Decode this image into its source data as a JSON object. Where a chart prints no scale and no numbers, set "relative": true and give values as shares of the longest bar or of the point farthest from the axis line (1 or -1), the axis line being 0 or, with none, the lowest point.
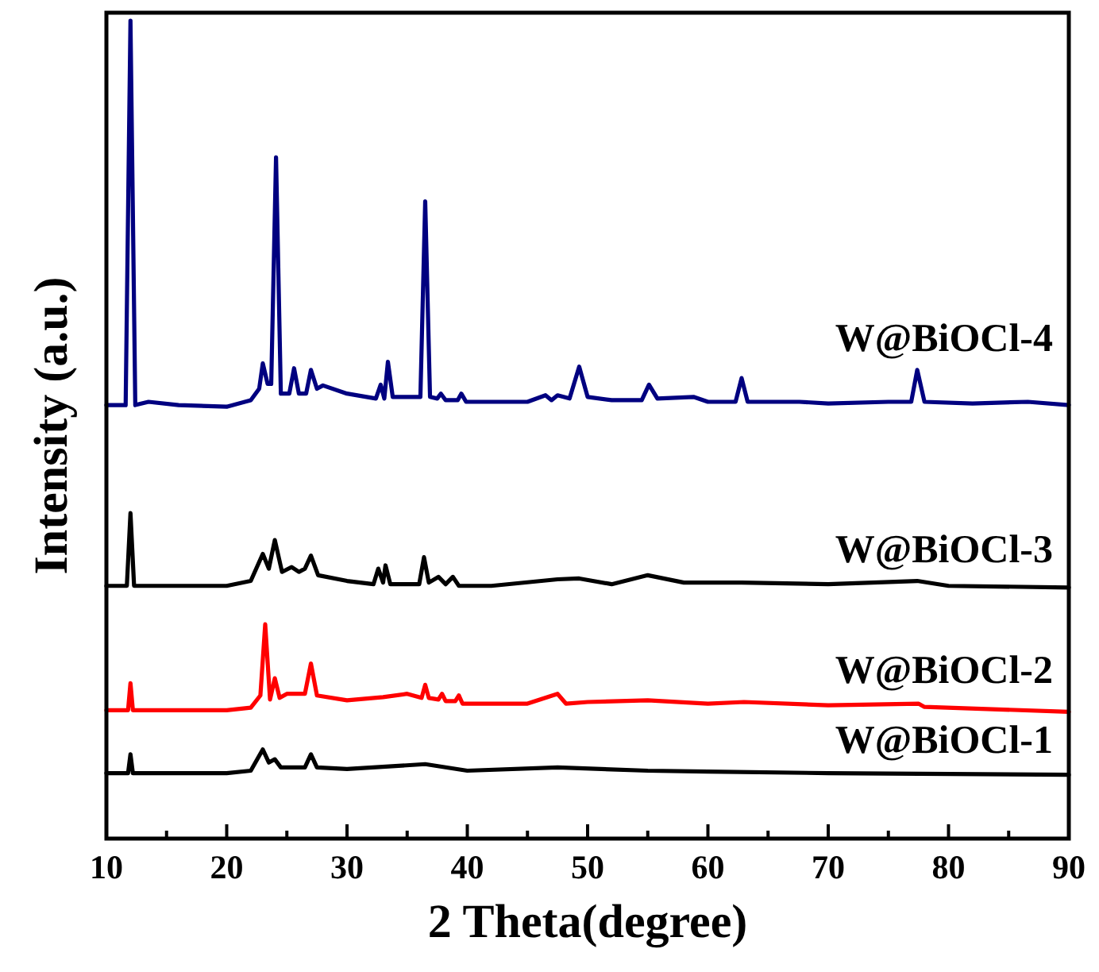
{
  "chart_data": {
    "type": "line",
    "relative": true,
    "xlabel": "2 Theta(degree)",
    "ylabel": "Intensity (a.u.)",
    "xlim": [
      10,
      90
    ],
    "xticks": [
      10,
      {
        "value": 15,
        "label": null
      },
      20,
      {
        "value": 25,
        "label": null
      },
      30,
      {
        "value": 35,
        "label": null
      },
      40,
      {
        "value": 45,
        "label": null
      },
      50,
      {
        "value": 55,
        "label": null
      },
      60,
      {
        "value": 65,
        "label": null
      },
      70,
      {
        "value": 75,
        "label": null
      },
      80,
      {
        "value": 85,
        "label": null
      },
      90
    ],
    "line_style": "solid",
    "series": [
      {
        "name": "W@BiOCl-4",
        "color": "#000080",
        "x": [
          10,
          11.6,
          12.0,
          12.4,
          13.5,
          16,
          20,
          22,
          22.7,
          23.0,
          23.4,
          23.7,
          24.1,
          24.5,
          25.2,
          25.6,
          26.0,
          26.6,
          27.0,
          27.5,
          28,
          30,
          32.4,
          32.8,
          33.1,
          33.4,
          33.8,
          36.1,
          36.5,
          36.9,
          37.5,
          37.8,
          38.2,
          39.2,
          39.5,
          39.9,
          42,
          45,
          46.5,
          47.0,
          47.5,
          48.5,
          49.3,
          50,
          52,
          54.5,
          55.1,
          55.8,
          58.8,
          60,
          62.3,
          62.8,
          63.3,
          67.6,
          70,
          75,
          76.9,
          77.4,
          78,
          82,
          86.6,
          90
        ],
        "values": [
          0.53,
          0.53,
          1.0,
          0.53,
          0.534,
          0.53,
          0.528,
          0.536,
          0.55,
          0.581,
          0.556,
          0.556,
          0.833,
          0.544,
          0.544,
          0.575,
          0.544,
          0.544,
          0.573,
          0.55,
          0.554,
          0.544,
          0.538,
          0.555,
          0.538,
          0.583,
          0.54,
          0.54,
          0.779,
          0.54,
          0.538,
          0.544,
          0.536,
          0.536,
          0.544,
          0.534,
          0.534,
          0.534,
          0.542,
          0.536,
          0.542,
          0.538,
          0.577,
          0.54,
          0.536,
          0.536,
          0.555,
          0.538,
          0.54,
          0.534,
          0.534,
          0.563,
          0.534,
          0.534,
          0.532,
          0.534,
          0.534,
          0.573,
          0.534,
          0.532,
          0.534,
          0.53
        ]
      },
      {
        "name": "W@BiOCl-3",
        "color": "#000000",
        "x": [
          10,
          11.7,
          12.0,
          12.3,
          20,
          22,
          23.0,
          23.5,
          24.0,
          24.6,
          25.4,
          26.0,
          26.5,
          27.0,
          27.6,
          30,
          32.2,
          32.6,
          33.0,
          33.2,
          33.6,
          36.0,
          36.4,
          36.8,
          37.6,
          38.2,
          38.8,
          39.3,
          42,
          47.5,
          49.3,
          52,
          55,
          58,
          62.8,
          70,
          77.4,
          80,
          90
        ],
        "values": [
          0.309,
          0.309,
          0.398,
          0.309,
          0.309,
          0.315,
          0.348,
          0.33,
          0.365,
          0.326,
          0.332,
          0.326,
          0.33,
          0.346,
          0.322,
          0.315,
          0.311,
          0.33,
          0.313,
          0.334,
          0.311,
          0.311,
          0.344,
          0.313,
          0.32,
          0.311,
          0.32,
          0.309,
          0.309,
          0.317,
          0.318,
          0.311,
          0.322,
          0.313,
          0.313,
          0.311,
          0.315,
          0.309,
          0.307
        ]
      },
      {
        "name": "W@BiOCl-2",
        "color": "#ff0000",
        "x": [
          10,
          11.8,
          12.0,
          12.2,
          20,
          22,
          22.8,
          23.2,
          23.6,
          24.0,
          24.4,
          25.0,
          26.5,
          27.0,
          27.5,
          30,
          33,
          35,
          36.2,
          36.5,
          36.8,
          37.6,
          37.9,
          38.2,
          39.0,
          39.3,
          39.6,
          45,
          47.5,
          48.2,
          50,
          55,
          60,
          63,
          70,
          77.5,
          78,
          90
        ],
        "values": [
          0.157,
          0.157,
          0.19,
          0.157,
          0.157,
          0.16,
          0.175,
          0.262,
          0.17,
          0.196,
          0.172,
          0.177,
          0.177,
          0.214,
          0.175,
          0.169,
          0.173,
          0.177,
          0.172,
          0.188,
          0.172,
          0.17,
          0.177,
          0.168,
          0.168,
          0.175,
          0.165,
          0.165,
          0.177,
          0.165,
          0.167,
          0.169,
          0.165,
          0.167,
          0.163,
          0.165,
          0.161,
          0.155
        ]
      },
      {
        "name": "W@BiOCl-1",
        "color": "#000000",
        "x": [
          10,
          11.8,
          12.0,
          12.2,
          20,
          22,
          23.0,
          23.5,
          24.0,
          24.5,
          26.5,
          27.0,
          27.5,
          30,
          36.5,
          40,
          47.5,
          55,
          60,
          70,
          90
        ],
        "values": [
          0.08,
          0.08,
          0.103,
          0.08,
          0.08,
          0.083,
          0.109,
          0.093,
          0.097,
          0.087,
          0.087,
          0.103,
          0.087,
          0.085,
          0.091,
          0.083,
          0.087,
          0.083,
          0.082,
          0.08,
          0.078
        ]
      }
    ]
  }
}
